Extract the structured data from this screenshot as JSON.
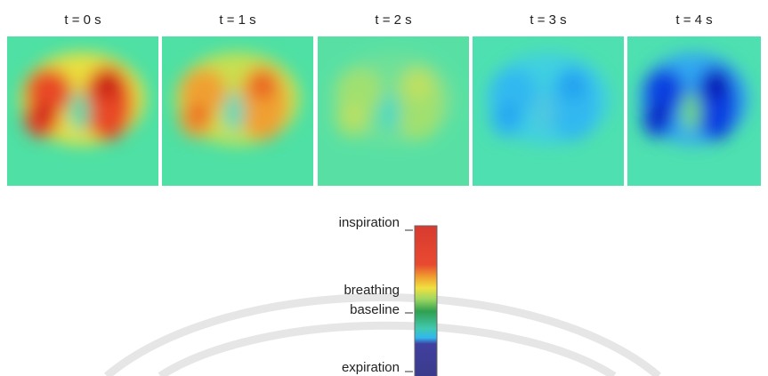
{
  "panels": [
    {
      "label": "t = 0 s"
    },
    {
      "label": "t = 1 s"
    },
    {
      "label": "t = 2 s"
    },
    {
      "label": "t = 3 s"
    },
    {
      "label": "t = 4 s"
    }
  ],
  "colorbar": {
    "top_label": "inspiration",
    "middle_label": [
      "breathing",
      "baseline"
    ],
    "bottom_label": "expiration"
  }
}
